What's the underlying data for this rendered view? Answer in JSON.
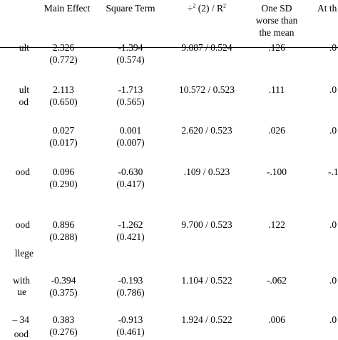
{
  "headers": {
    "main_effect": "Main Effect",
    "square_term": "Square Term",
    "chi_prefix": "÷",
    "chi_sup": "2",
    "chi_mid": " (2) / R",
    "chi_sup2": "2",
    "one_sd_line1": "One SD",
    "one_sd_line2": "worse than",
    "one_sd_line3": "the mean",
    "at_the": "At th"
  },
  "row_labels": [
    [
      "ult"
    ],
    [
      "ult",
      "od"
    ],
    [],
    [
      "ood"
    ],
    [
      "ood",
      "llege"
    ],
    [
      "with",
      "ue"
    ],
    [
      "– 34",
      "ood"
    ]
  ],
  "rows": [
    {
      "main": "2.326",
      "main_se": "(0.772)",
      "sq": "-1.394",
      "sq_se": "(0.574)",
      "chi": "9.087 / 0.524",
      "sd": ".126",
      "at": ".0"
    },
    {
      "main": "2.113",
      "main_se": "(0.650)",
      "sq": "-1.713",
      "sq_se": "(0.565)",
      "chi": "10.572 / 0.523",
      "sd": ".111",
      "at": ".0"
    },
    {
      "main": "0.027",
      "main_se": "(0.017)",
      "sq": "0.001",
      "sq_se": "(0.007)",
      "chi": "2.620 / 0.523",
      "sd": ".026",
      "at": ".0"
    },
    {
      "main": "0.096",
      "main_se": "(0.290)",
      "sq": "-0.630",
      "sq_se": "(0.417)",
      "chi": ".109 / 0.523",
      "sd": "-.100",
      "at": "-.1"
    },
    {
      "main": "0.896",
      "main_se": "(0.288)",
      "sq": "-1.262",
      "sq_se": "(0.421)",
      "chi": "9.700 / 0.523",
      "sd": ".122",
      "at": ".0"
    },
    {
      "main": "-0.394",
      "main_se": "(0.375)",
      "sq": "-0.193",
      "sq_se": "(0.786)",
      "chi": "1.104 / 0.522",
      "sd": "-.062",
      "at": ".0"
    },
    {
      "main": "0.383",
      "main_se": "(0.276)",
      "sq": "-0.913",
      "sq_se": "(0.461)",
      "chi": "1.924 / 0.522",
      "sd": ".006",
      "at": ".0"
    }
  ]
}
